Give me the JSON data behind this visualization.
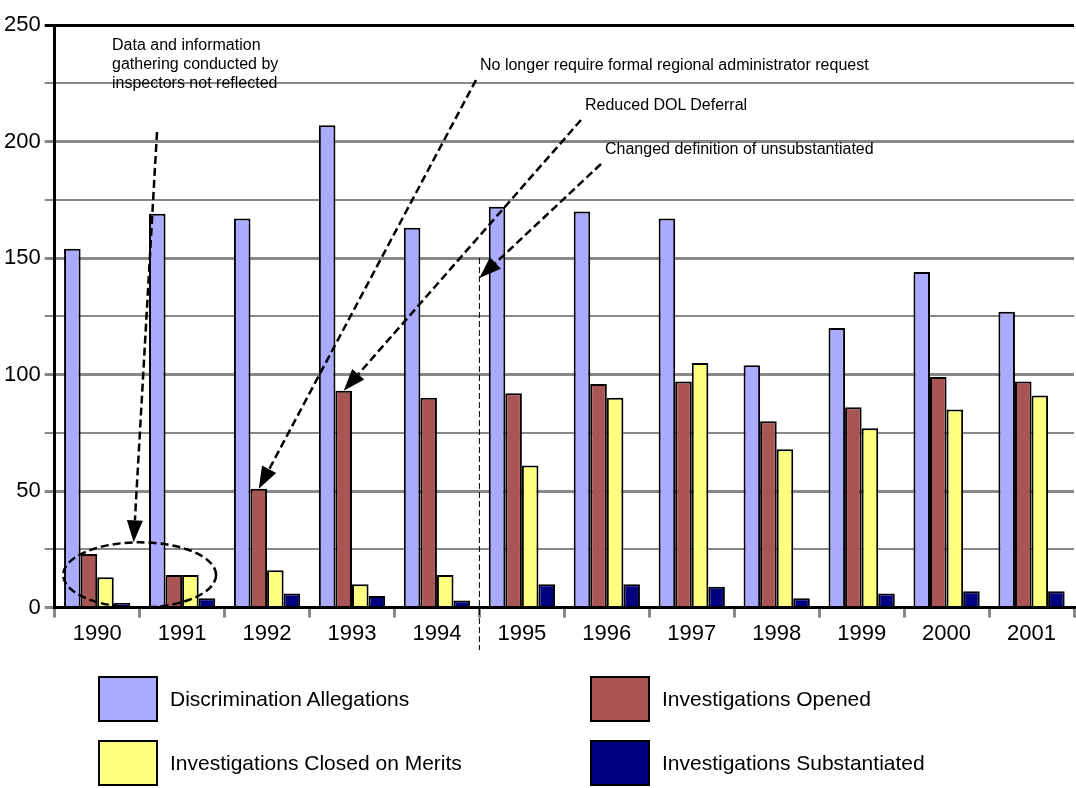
{
  "chart_data": {
    "type": "bar",
    "categories": [
      "1990",
      "1991",
      "1992",
      "1993",
      "1994",
      "1995",
      "1996",
      "1997",
      "1998",
      "1999",
      "2000",
      "2001"
    ],
    "series": [
      {
        "name": "Discrimination Allegations",
        "color": "#aaaaff",
        "values": [
          154,
          169,
          167,
          207,
          163,
          172,
          170,
          167,
          104,
          120,
          144,
          127
        ]
      },
      {
        "name": "Investigations Opened",
        "color": "#aa5555",
        "values": [
          23,
          14,
          51,
          93,
          90,
          92,
          96,
          97,
          80,
          86,
          99,
          97
        ]
      },
      {
        "name": "Investigations Closed on Merits",
        "color": "#ffff80",
        "values": [
          13,
          14,
          16,
          10,
          14,
          61,
          90,
          105,
          68,
          77,
          85,
          91
        ]
      },
      {
        "name": "Investigations Substantiated",
        "color": "#000080",
        "values": [
          2,
          4,
          6,
          5,
          3,
          10,
          10,
          9,
          4,
          6,
          7,
          7
        ]
      }
    ],
    "ylim": [
      0,
      250
    ],
    "yticks": [
      0,
      {
        "value": 25,
        "label": null
      },
      50,
      {
        "value": 75,
        "label": null
      },
      100,
      {
        "value": 125,
        "label": null
      },
      150,
      {
        "value": 175,
        "label": null
      },
      200,
      {
        "value": 225,
        "label": null
      },
      250
    ],
    "grid": "y",
    "legend": "bottom",
    "annotations": [
      "Data and information gathering conducted by inspectors not reflected",
      "No longer require formal regional administrator request",
      "Reduced DOL Deferral",
      "Changed definition of unsubstantiated"
    ],
    "ref_lines": [
      {
        "axis": "x",
        "value": "1995",
        "line_style": "dashed"
      }
    ]
  }
}
